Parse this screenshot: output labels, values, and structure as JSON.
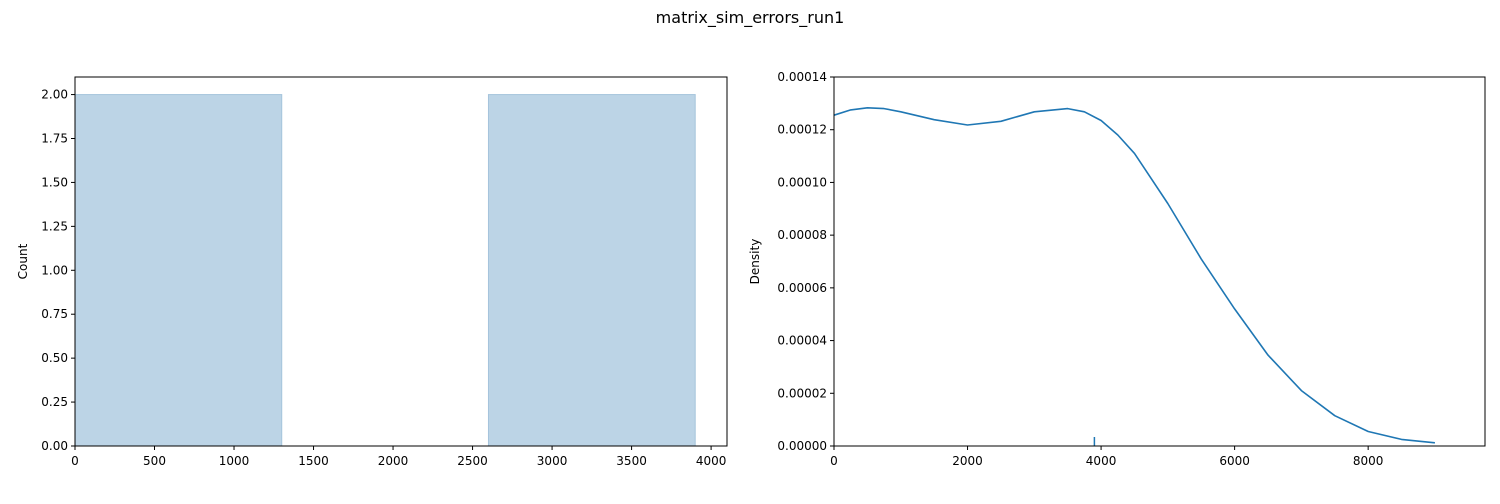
{
  "suptitle": "matrix_sim_errors_run1",
  "chart_data": [
    {
      "type": "bar",
      "subtype": "histogram",
      "title": "",
      "xlabel": "",
      "ylabel": "Count",
      "xlim": [
        0,
        4100
      ],
      "ylim": [
        0,
        2.1
      ],
      "bins": [
        {
          "x0": 0,
          "x1": 1300,
          "count": 2
        },
        {
          "x0": 1300,
          "x1": 2600,
          "count": 0
        },
        {
          "x0": 2600,
          "x1": 3900,
          "count": 2
        }
      ],
      "x_ticks": [
        0,
        500,
        1000,
        1500,
        2000,
        2500,
        3000,
        3500,
        4000
      ],
      "x_tick_labels": [
        "0",
        "500",
        "1000",
        "1500",
        "2000",
        "2500",
        "3000",
        "3500",
        "4000"
      ],
      "y_ticks": [
        0,
        0.25,
        0.5,
        0.75,
        1.0,
        1.25,
        1.5,
        1.75,
        2.0
      ],
      "y_tick_labels": [
        "0.00",
        "0.25",
        "0.50",
        "0.75",
        "1.00",
        "1.25",
        "1.50",
        "1.75",
        "2.00"
      ],
      "bar_color": "#bcd4e6",
      "bar_edge_color": "#a5c4dc",
      "grid": false
    },
    {
      "type": "line",
      "subtype": "kde",
      "title": "",
      "xlabel": "",
      "ylabel": "Density",
      "xlim": [
        0,
        9750
      ],
      "ylim": [
        0,
        0.00014
      ],
      "x": [
        0,
        250,
        500,
        750,
        1000,
        1500,
        2000,
        2500,
        3000,
        3500,
        3750,
        4000,
        4250,
        4500,
        5000,
        5500,
        6000,
        6500,
        7000,
        7500,
        8000,
        8500,
        9000
      ],
      "y": [
        0.0001255,
        0.0001275,
        0.0001283,
        0.000128,
        0.0001268,
        0.0001238,
        0.0001218,
        0.0001232,
        0.0001268,
        0.000128,
        0.0001268,
        0.0001235,
        0.000118,
        0.000111,
        9.2e-05,
        7.1e-05,
        5.2e-05,
        3.45e-05,
        2.1e-05,
        1.15e-05,
        5.5e-06,
        2.5e-06,
        1.2e-06
      ],
      "rug": [
        3900
      ],
      "x_ticks": [
        0,
        2000,
        4000,
        6000,
        8000
      ],
      "x_tick_labels": [
        "0",
        "2000",
        "4000",
        "6000",
        "8000"
      ],
      "y_ticks": [
        0,
        2e-05,
        4e-05,
        6e-05,
        8e-05,
        0.0001,
        0.00012,
        0.00014
      ],
      "y_tick_labels": [
        "0.00000",
        "0.00002",
        "0.00004",
        "0.00006",
        "0.00008",
        "0.00010",
        "0.00012",
        "0.00014"
      ],
      "line_color": "#1f77b4",
      "grid": false
    }
  ]
}
